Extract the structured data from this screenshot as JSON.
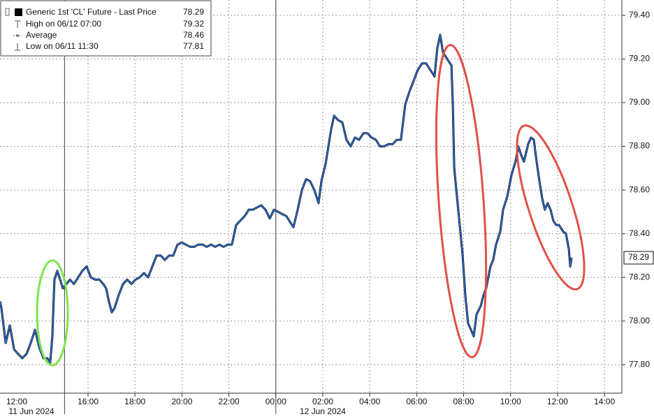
{
  "chart_data": {
    "type": "line",
    "x": [
      12.25,
      12.31,
      12.49,
      12.67,
      12.85,
      13.02,
      13.2,
      13.38,
      13.56,
      13.74,
      13.92,
      14.1,
      14.27,
      14.39,
      14.48,
      14.57,
      14.69,
      14.81,
      14.93,
      15.08,
      15.23,
      15.4,
      15.58,
      15.76,
      15.94,
      16.12,
      16.3,
      16.48,
      16.65,
      16.77,
      16.89,
      17.01,
      17.13,
      17.31,
      17.49,
      17.67,
      17.85,
      18.02,
      18.2,
      18.38,
      18.56,
      18.74,
      18.92,
      19.1,
      19.27,
      19.45,
      19.63,
      19.81,
      19.99,
      20.17,
      20.35,
      20.52,
      20.7,
      20.88,
      21.06,
      21.24,
      21.42,
      21.6,
      21.77,
      21.95,
      22.13,
      22.31,
      22.49,
      22.67,
      22.85,
      23.02,
      23.2,
      23.38,
      23.56,
      23.74,
      23.92,
      24.1,
      24.27,
      24.45,
      24.63,
      24.75,
      24.93,
      25.11,
      25.29,
      25.46,
      25.64,
      25.82,
      25.94,
      26.12,
      26.24,
      26.36,
      26.48,
      26.65,
      26.83,
      27.01,
      27.19,
      27.37,
      27.55,
      27.73,
      27.9,
      28.08,
      28.26,
      28.44,
      28.62,
      28.8,
      28.98,
      29.15,
      29.33,
      29.51,
      29.69,
      29.87,
      30.05,
      30.23,
      30.4,
      30.58,
      30.76,
      30.88,
      31,
      31.12,
      31.3,
      31.48,
      31.54,
      31.6,
      31.77,
      31.95,
      32.07,
      32.19,
      32.31,
      32.43,
      32.55,
      32.73,
      32.85,
      32.96,
      33.14,
      33.26,
      33.38,
      33.56,
      33.68,
      33.86,
      34.04,
      34.21,
      34.33,
      34.45,
      34.57,
      34.75,
      34.87,
      34.99,
      35.11,
      35.23,
      35.35,
      35.46,
      35.58,
      35.7,
      35.82,
      35.94,
      36.06,
      36.24,
      36.36,
      36.48,
      36.54,
      36.6
    ],
    "series": [
      {
        "name": "Generic 1st 'CL' Future - Last Price",
        "color": "#2a6fd6",
        "last_price": 78.29,
        "values": [
          78.09,
          78.06,
          77.9,
          77.98,
          77.87,
          77.85,
          77.83,
          77.85,
          77.9,
          77.96,
          77.88,
          77.83,
          77.83,
          77.81,
          77.93,
          78.19,
          78.23,
          78.19,
          78.15,
          78.17,
          78.19,
          78.17,
          78.2,
          78.23,
          78.25,
          78.2,
          78.19,
          78.19,
          78.17,
          78.15,
          78.09,
          78.04,
          78.06,
          78.12,
          78.17,
          78.19,
          78.17,
          78.19,
          78.2,
          78.22,
          78.2,
          78.25,
          78.3,
          78.3,
          78.28,
          78.3,
          78.3,
          78.35,
          78.36,
          78.35,
          78.34,
          78.34,
          78.35,
          78.35,
          78.34,
          78.35,
          78.34,
          78.35,
          78.34,
          78.35,
          78.35,
          78.44,
          78.46,
          78.48,
          78.51,
          78.51,
          78.52,
          78.53,
          78.51,
          78.47,
          78.51,
          78.5,
          78.49,
          78.48,
          78.45,
          78.43,
          78.51,
          78.6,
          78.65,
          78.64,
          78.6,
          78.54,
          78.64,
          78.72,
          78.8,
          78.88,
          78.94,
          78.92,
          78.91,
          78.83,
          78.8,
          78.84,
          78.83,
          78.86,
          78.86,
          78.84,
          78.83,
          78.8,
          78.8,
          78.81,
          78.81,
          78.83,
          78.83,
          78.99,
          79.05,
          79.1,
          79.15,
          79.18,
          79.18,
          79.15,
          79.12,
          79.25,
          79.31,
          79.23,
          79.2,
          79.17,
          78.99,
          78.7,
          78.51,
          78.31,
          78.12,
          77.99,
          77.96,
          77.93,
          78.03,
          78.07,
          78.12,
          78.15,
          78.25,
          78.28,
          78.35,
          78.41,
          78.51,
          78.57,
          78.67,
          78.73,
          78.8,
          78.76,
          78.73,
          78.81,
          78.84,
          78.83,
          78.73,
          78.64,
          78.56,
          78.51,
          78.54,
          78.51,
          78.46,
          78.44,
          78.44,
          78.41,
          78.4,
          78.33,
          78.25,
          78.29
        ]
      }
    ],
    "stats": [
      {
        "label": "High on 06/12 07:00",
        "value": 79.32
      },
      {
        "label": "Average",
        "value": 78.46
      },
      {
        "label": "Low on 06/11 11:30",
        "value": 77.81
      }
    ],
    "legend": "upper left",
    "xlim": [
      12.25,
      38.74
    ],
    "xticks": [
      {
        "value": 12,
        "label": "12:00"
      },
      {
        "value": 16,
        "label": "16:00"
      },
      {
        "value": 18,
        "label": "18:00"
      },
      {
        "value": 20,
        "label": "20:00"
      },
      {
        "value": 22,
        "label": "22:00"
      },
      {
        "value": 24,
        "label": "00:00"
      },
      {
        "value": 26,
        "label": "02:00"
      },
      {
        "value": 28,
        "label": "04:00"
      },
      {
        "value": 30,
        "label": "06:00"
      },
      {
        "value": 32,
        "label": "08:00"
      },
      {
        "value": 34,
        "label": "10:00"
      },
      {
        "value": 36,
        "label": "12:00"
      },
      {
        "value": 38,
        "label": "14:00"
      }
    ],
    "date_labels": [
      {
        "value": 12,
        "label": "11 Jun 2024"
      },
      {
        "value": 26,
        "label": "12 Jun 2024"
      }
    ],
    "x_separators": [
      15,
      24
    ],
    "ylim": [
      77.67,
      79.47
    ],
    "yticks": [
      {
        "value": 77.8,
        "label": "77.80"
      },
      {
        "value": 78,
        "label": "78.00"
      },
      {
        "value": 78.2,
        "label": "78.20"
      },
      {
        "value": 78.4,
        "label": "78.40"
      },
      {
        "value": 78.6,
        "label": "78.60"
      },
      {
        "value": 78.8,
        "label": "78.80"
      },
      {
        "value": 79,
        "label": "79.00"
      },
      {
        "value": 79.2,
        "label": "79.20"
      },
      {
        "value": 79.4,
        "label": "79.40"
      }
    ],
    "grid": true
  }
}
